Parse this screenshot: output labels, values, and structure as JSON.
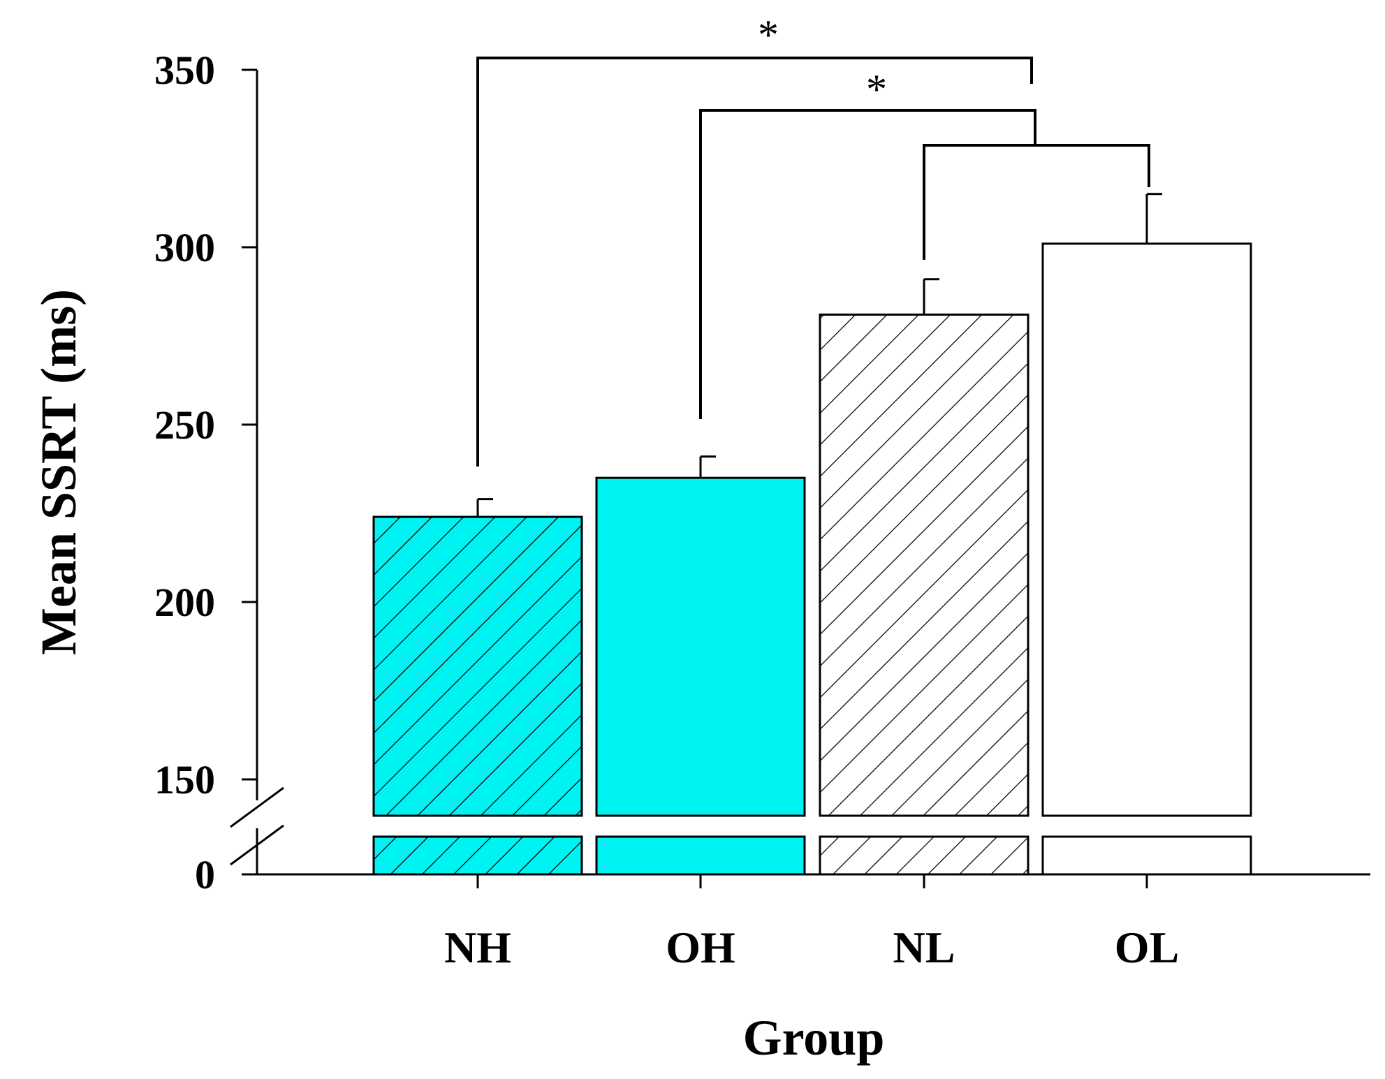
{
  "chart_data": {
    "type": "bar",
    "title": "",
    "xlabel": "Group",
    "ylabel": "Mean SSRT (ms)",
    "categories": [
      "NH",
      "OH",
      "NL",
      "OL"
    ],
    "values": [
      224,
      235,
      281,
      301
    ],
    "errors": [
      5,
      6,
      10,
      14
    ],
    "fills": [
      {
        "color": "#00f3f3",
        "hatch": true
      },
      {
        "color": "#00f3f3",
        "hatch": false
      },
      {
        "color": "#ffffff",
        "hatch": true
      },
      {
        "color": "#ffffff",
        "hatch": false
      }
    ],
    "yticks": [
      0,
      150,
      200,
      250,
      300,
      350
    ],
    "ylim": [
      150,
      350
    ],
    "axis_break": true,
    "significance": [
      {
        "from": "NH",
        "to": "NL/OL",
        "label": "*"
      },
      {
        "from": "OH",
        "to": "NL/OL",
        "label": "*"
      },
      {
        "from": "NL",
        "to": "OL",
        "label": ""
      }
    ]
  }
}
